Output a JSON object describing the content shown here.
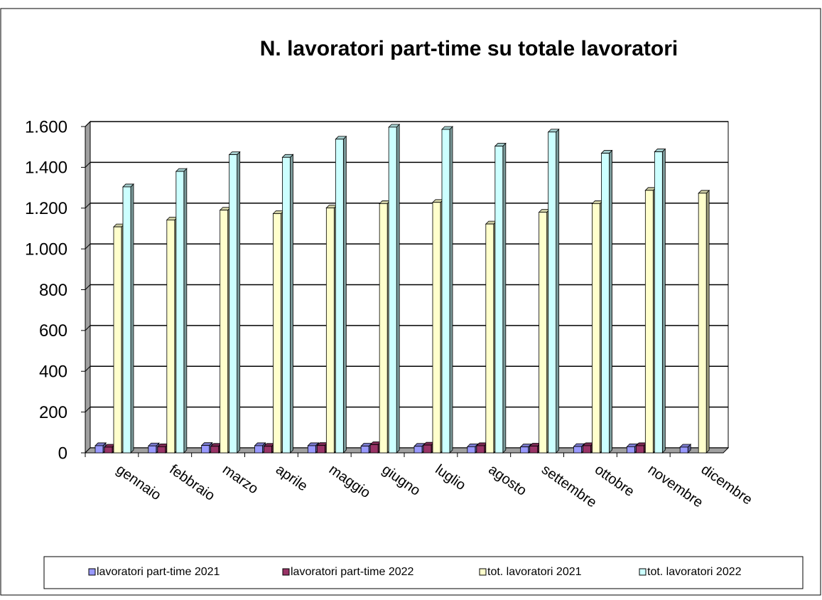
{
  "chart_data": {
    "type": "bar3d",
    "title": "N. lavoratori part-time su totale lavoratori",
    "categories": [
      "gennaio",
      "febbraio",
      "marzo",
      "aprile",
      "maggio",
      "giugno",
      "luglio",
      "agosto",
      "settembre",
      "ottobre",
      "novembre",
      "dicembre"
    ],
    "series": [
      {
        "name": "lavoratori part-time 2021",
        "color": "#9999ff",
        "values": [
          35,
          34,
          36,
          35,
          35,
          33,
          32,
          30,
          29,
          31,
          30,
          28
        ]
      },
      {
        "name": "lavoratori part-time 2022",
        "color": "#993366",
        "values": [
          28,
          30,
          32,
          32,
          36,
          40,
          38,
          35,
          33,
          35,
          35,
          null
        ]
      },
      {
        "name": "tot. lavoratori 2021",
        "color": "#ffffcc",
        "values": [
          1108,
          1142,
          1190,
          1173,
          1201,
          1222,
          1228,
          1122,
          1180,
          1222,
          1287,
          1273
        ]
      },
      {
        "name": "tot. lavoratori 2022",
        "color": "#ccffff",
        "values": [
          1304,
          1380,
          1462,
          1449,
          1538,
          1597,
          1586,
          1504,
          1573,
          1469,
          1476,
          null
        ]
      }
    ],
    "ylim": [
      0,
      1600
    ],
    "yticks": [
      0,
      200,
      400,
      600,
      800,
      {
        "value": 1000,
        "label": "1.000"
      },
      {
        "value": 1200,
        "label": "1.200"
      },
      {
        "value": 1400,
        "label": "1.400"
      },
      {
        "value": 1600,
        "label": "1.600"
      }
    ],
    "grid": true,
    "legend": "bottom"
  }
}
